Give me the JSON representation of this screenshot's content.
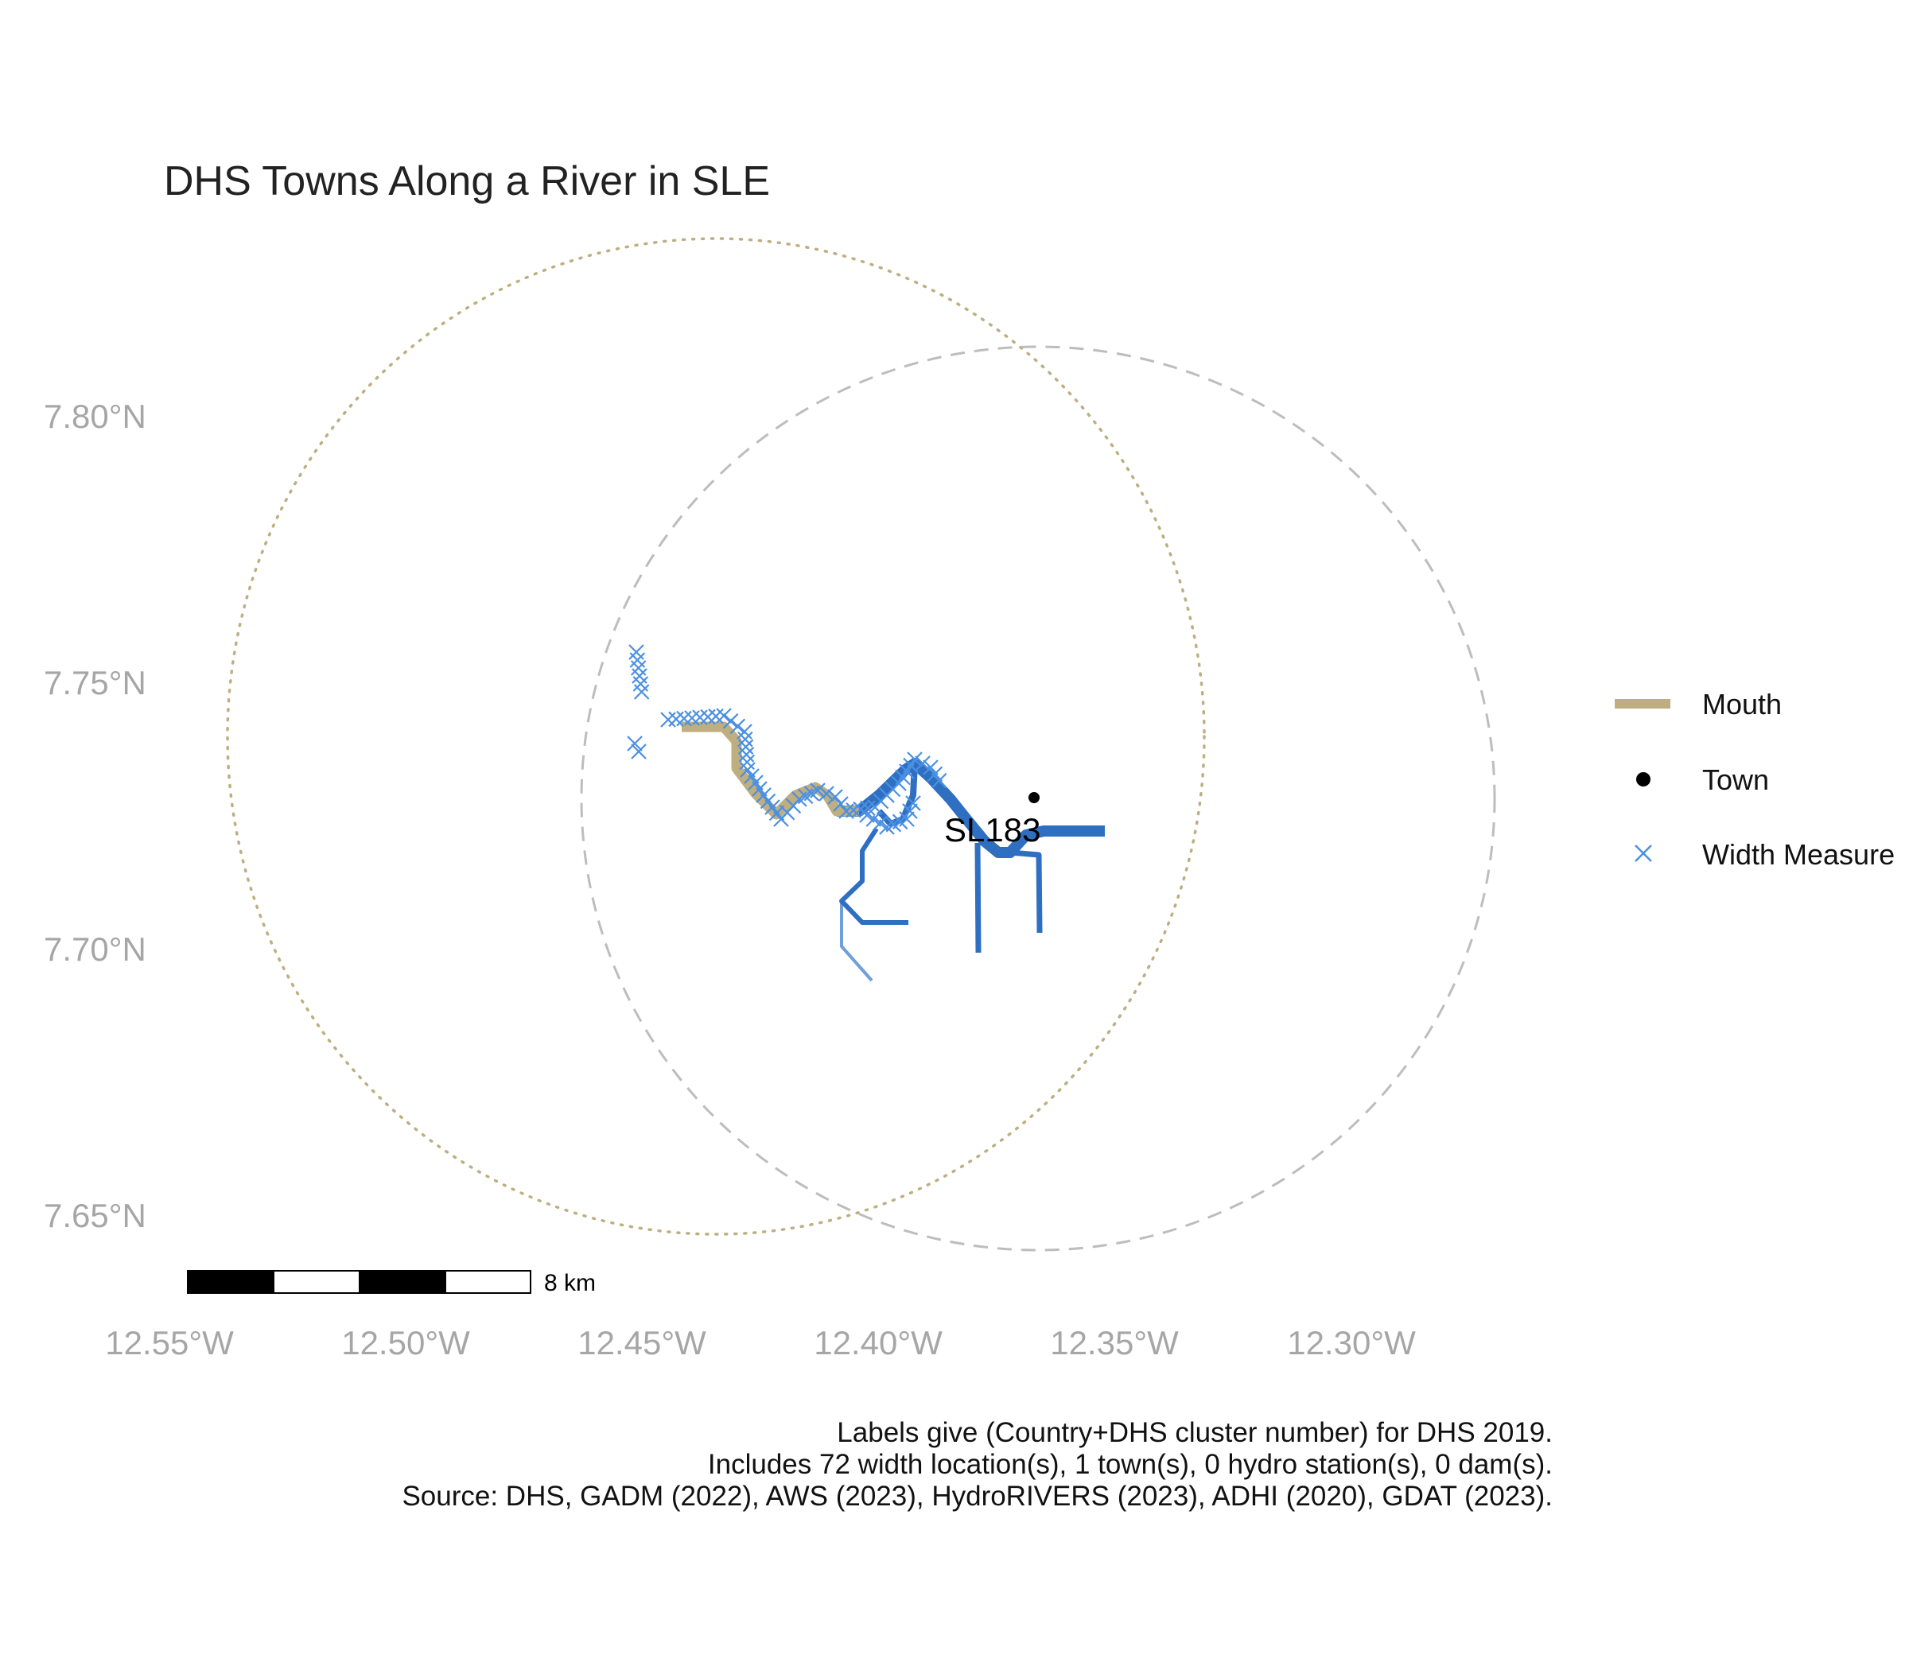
{
  "title": "DHS Towns Along a River in SLE",
  "axes": {
    "lat_ticks": [
      "7.80°N",
      "7.75°N",
      "7.70°N",
      "7.65°N"
    ],
    "lon_ticks": [
      "12.55°W",
      "12.50°W",
      "12.45°W",
      "12.40°W",
      "12.35°W",
      "12.30°W"
    ]
  },
  "legend": [
    {
      "key": "mouth",
      "label": "Mouth"
    },
    {
      "key": "town",
      "label": "Town"
    },
    {
      "key": "width",
      "label": "Width Measure"
    }
  ],
  "scale_bar": {
    "label": "8 km"
  },
  "town": {
    "label": "SL183",
    "lon": -12.367,
    "lat": 7.728
  },
  "colors": {
    "mouth": "#bfae80",
    "river": "#2f6fc2",
    "river_light": "#6f9fd8",
    "width_marker": "#4a90e2",
    "town": "#000000",
    "mouth_circle": "#bfae80",
    "buffer_circle": "#bdbdbd"
  },
  "caption": {
    "line1": "Labels give (Country+DHS cluster number) for DHS 2019.",
    "line2": "Includes 72 width location(s), 1 town(s), 0 hydro station(s), 0 dam(s).",
    "line3": "Source: DHS, GADM (2022), AWS (2023), HydroRIVERS (2023), ADHI (2020), GDAT (2023)."
  }
}
